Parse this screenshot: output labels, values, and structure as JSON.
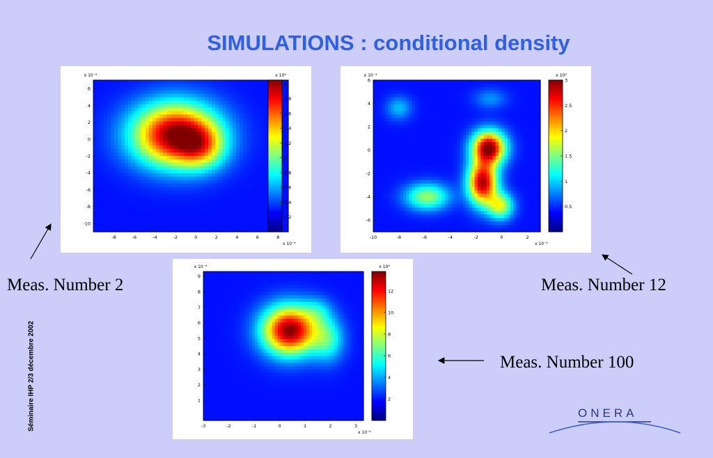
{
  "slide": {
    "title": "SIMULATIONS : conditional density",
    "side_text": "Séminaire IHP  2/3  décembre 2002",
    "logo_text": "ONERA"
  },
  "captions": {
    "meas2": "Meas. Number 2",
    "meas12": "Meas. Number 12",
    "meas100": "Meas. Number 100"
  },
  "chart_data": [
    {
      "type": "heatmap",
      "x_exponent_label": "x 10⁻⁴",
      "y_exponent_label": "x 10⁻⁴",
      "xlim": [
        -10,
        9
      ],
      "ylim": [
        -11,
        7
      ],
      "x_ticks": [
        -8,
        -6,
        -4,
        -2,
        0,
        2,
        4,
        6,
        8
      ],
      "y_ticks": [
        -10,
        -8,
        -6,
        -4,
        -2,
        0,
        2,
        4,
        6
      ],
      "colorbar": {
        "exponent_label": "x 10⁶",
        "range": [
          0,
          2.05
        ],
        "ticks": [
          0.2,
          0.4,
          0.6,
          0.8,
          1,
          1.2,
          1.4,
          1.6,
          1.8,
          2
        ]
      },
      "peaks": [
        {
          "x": -2.0,
          "y": 0.5,
          "sx": 2.9,
          "sy": 2.6,
          "amp": 1.0
        },
        {
          "x": 0.5,
          "y": -1.0,
          "sx": 1.6,
          "sy": 1.8,
          "amp": 0.35
        }
      ]
    },
    {
      "type": "heatmap",
      "x_exponent_label": "x 10⁻⁴",
      "y_exponent_label": "x 10⁻⁴",
      "xlim": [
        -10,
        3
      ],
      "ylim": [
        -7,
        6
      ],
      "x_ticks": [
        -10,
        -8,
        -6,
        -4,
        -2,
        0,
        2
      ],
      "y_ticks": [
        -6,
        -4,
        -2,
        0,
        2,
        4,
        6
      ],
      "colorbar": {
        "exponent_label": "x 10⁶",
        "range": [
          0,
          3
        ],
        "ticks": [
          0.5,
          1,
          1.5,
          2,
          2.5,
          3
        ]
      },
      "peaks": [
        {
          "x": -1.0,
          "y": 0.2,
          "sx": 0.9,
          "sy": 1.0,
          "amp": 1.0
        },
        {
          "x": -1.5,
          "y": -2.8,
          "sx": 0.8,
          "sy": 1.3,
          "amp": 0.95
        },
        {
          "x": -5.8,
          "y": -4.0,
          "sx": 1.2,
          "sy": 0.8,
          "amp": 0.45
        },
        {
          "x": -0.1,
          "y": -4.8,
          "sx": 0.7,
          "sy": 0.8,
          "amp": 0.5
        },
        {
          "x": -8.0,
          "y": 3.6,
          "sx": 0.7,
          "sy": 0.7,
          "amp": 0.2
        },
        {
          "x": -0.9,
          "y": 4.4,
          "sx": 0.9,
          "sy": 0.6,
          "amp": 0.15
        }
      ]
    },
    {
      "type": "heatmap",
      "x_exponent_label": "x 10⁻⁴",
      "y_exponent_label": "x 10⁻⁴",
      "xlim": [
        -3,
        3.3
      ],
      "ylim": [
        -0.3,
        9.3
      ],
      "x_ticks": [
        -3,
        -2,
        -1,
        0,
        1,
        2,
        3
      ],
      "y_ticks": [
        1,
        2,
        3,
        4,
        5,
        6,
        7,
        8,
        9
      ],
      "colorbar": {
        "exponent_label": "x 10⁶",
        "range": [
          0,
          13.8
        ],
        "ticks": [
          2,
          4,
          6,
          8,
          10,
          12
        ]
      },
      "peaks": [
        {
          "x": 0.4,
          "y": 5.5,
          "sx": 0.75,
          "sy": 1.1,
          "amp": 1.0
        },
        {
          "x": 1.9,
          "y": 4.9,
          "sx": 0.45,
          "sy": 1.0,
          "amp": 0.3
        },
        {
          "x": 1.5,
          "y": 6.8,
          "sx": 0.4,
          "sy": 0.6,
          "amp": 0.15
        }
      ]
    }
  ]
}
